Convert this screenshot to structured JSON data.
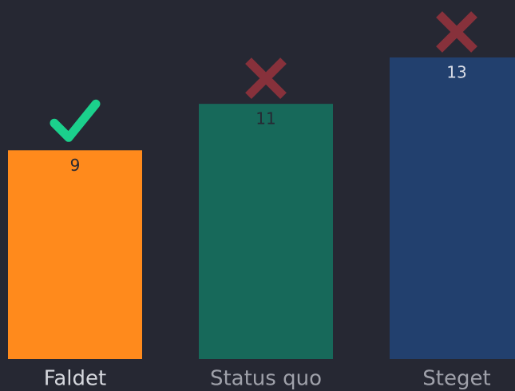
{
  "chart_data": {
    "type": "bar",
    "categories": [
      "Faldet",
      "Status quo",
      "Steget"
    ],
    "values": [
      9,
      11,
      13
    ],
    "colors": [
      "#ff8a1c",
      "#17695a",
      "#22406e"
    ],
    "label_colors": [
      "#262833",
      "#262833",
      "#d8dce6"
    ],
    "correct": [
      true,
      false,
      false
    ]
  }
}
